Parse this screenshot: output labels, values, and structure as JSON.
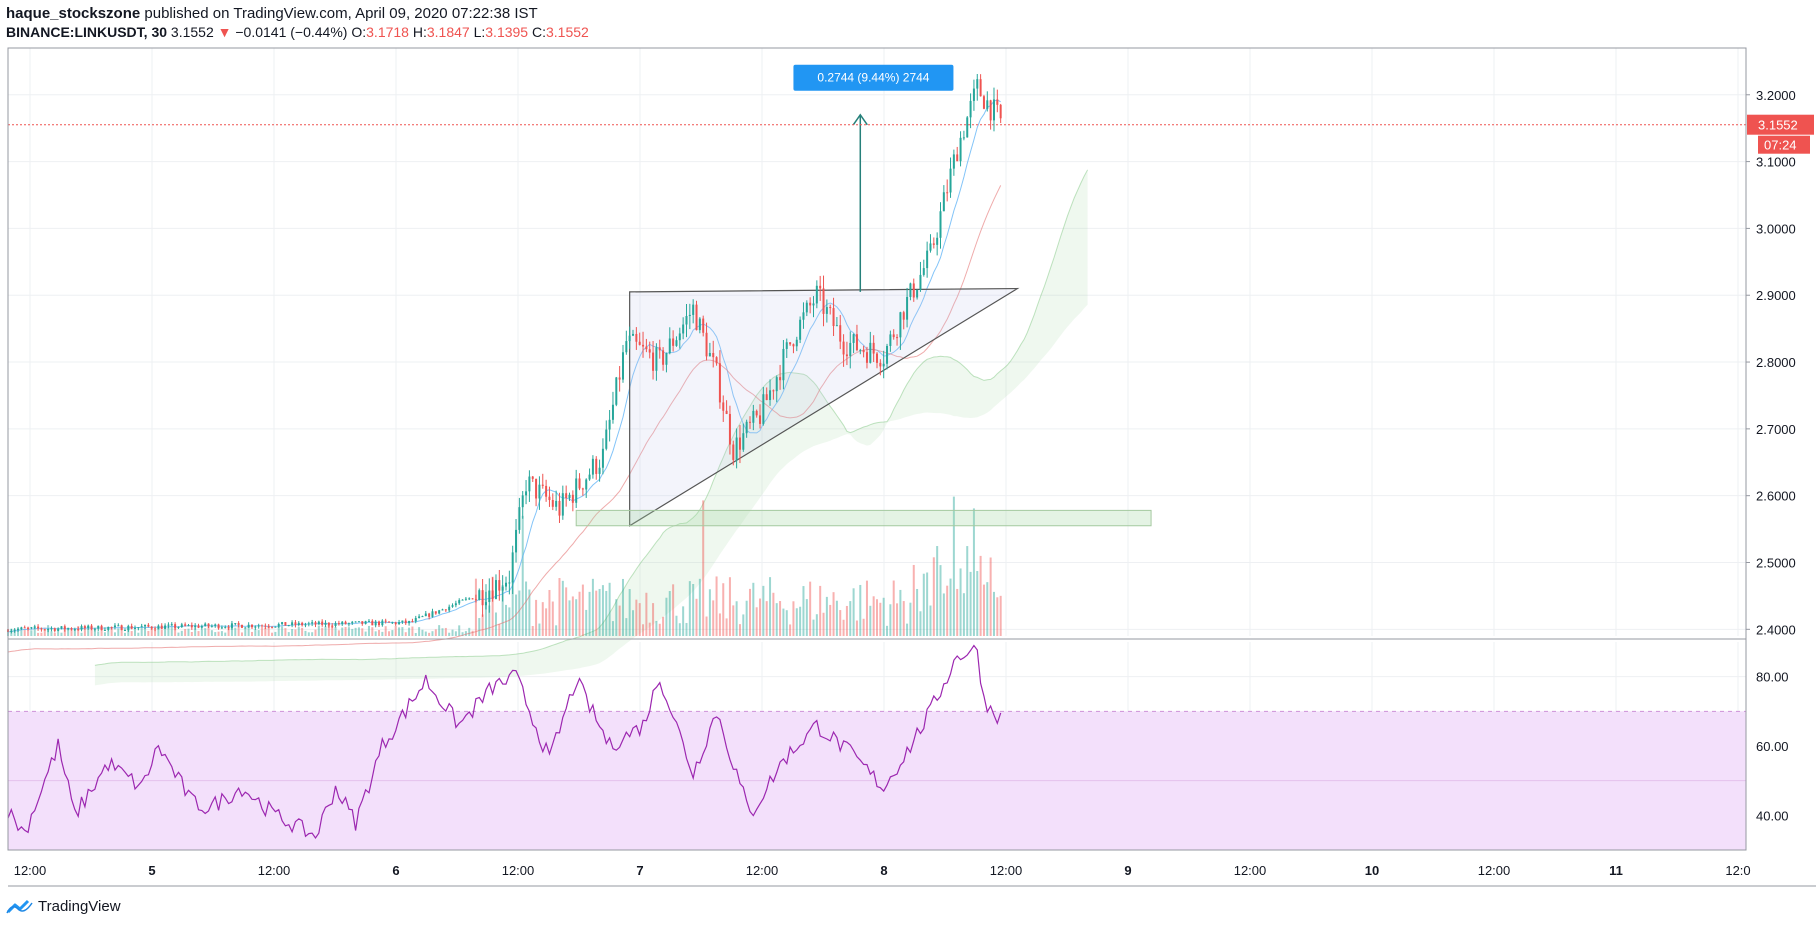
{
  "header": {
    "author": "haque_stockszone",
    "published": "published on TradingView.com, April 09, 2020 07:22:38 IST",
    "symbol": "BINANCE:LINKUSDT, 30",
    "last": "3.1552",
    "change": "−0.0141 (−0.44%)",
    "o_label": "O:",
    "o": "3.1718",
    "h_label": "H:",
    "h": "3.1847",
    "l_label": "L:",
    "l": "3.1395",
    "c_label": "C:",
    "c": "3.1552"
  },
  "footer": {
    "brand": "TradingView"
  },
  "colors": {
    "up": "#26a69a",
    "down": "#ef5350",
    "rsi": "#9c27b0",
    "rsi_band": "#f3e0fb",
    "label_blue": "#2196f3",
    "grid": "#eef0f3"
  },
  "chart_data": [
    {
      "type": "candlestick",
      "title": "",
      "ylim": [
        2.39,
        3.27
      ],
      "y_ticks": [
        "3.2000",
        "3.1000",
        "3.0000",
        "2.9000",
        "2.8000",
        "2.7000",
        "2.6000",
        "2.5000",
        "2.4000"
      ],
      "y_tick_values": [
        3.2,
        3.1,
        3.0,
        2.9,
        2.8,
        2.7,
        2.6,
        2.5,
        2.4
      ],
      "x_ticks": [
        "12:00",
        "5",
        "12:00",
        "6",
        "12:00",
        "7",
        "12:00",
        "8",
        "12:00",
        "9",
        "12:00",
        "10",
        "12:00",
        "11",
        "12:0"
      ],
      "last_price_label": "3.1552",
      "countdown_label": "07:24",
      "measure_label": "0.2744 (9.44%) 2744",
      "key_points": [
        {
          "bar": 0,
          "close": 2.4
        },
        {
          "bar": 120,
          "close": 2.41
        },
        {
          "bar": 140,
          "close": 2.45
        },
        {
          "bar": 150,
          "close": 2.48
        },
        {
          "bar": 155,
          "close": 2.62
        },
        {
          "bar": 165,
          "close": 2.58
        },
        {
          "bar": 178,
          "close": 2.66
        },
        {
          "bar": 185,
          "close": 2.83
        },
        {
          "bar": 195,
          "close": 2.8
        },
        {
          "bar": 205,
          "close": 2.88
        },
        {
          "bar": 212,
          "close": 2.78
        },
        {
          "bar": 217,
          "close": 2.67
        },
        {
          "bar": 225,
          "close": 2.72
        },
        {
          "bar": 235,
          "close": 2.84
        },
        {
          "bar": 242,
          "close": 2.9
        },
        {
          "bar": 250,
          "close": 2.83
        },
        {
          "bar": 262,
          "close": 2.81
        },
        {
          "bar": 268,
          "close": 2.88
        },
        {
          "bar": 276,
          "close": 2.96
        },
        {
          "bar": 284,
          "close": 3.12
        },
        {
          "bar": 290,
          "close": 3.21
        },
        {
          "bar": 297,
          "close": 3.16
        }
      ]
    },
    {
      "type": "line",
      "title": "",
      "ylim": [
        30,
        90
      ],
      "y_ticks": [
        "80.00",
        "60.00",
        "40.00"
      ],
      "y_tick_values": [
        80,
        60,
        40
      ],
      "band": [
        30,
        70
      ],
      "key_points": [
        {
          "bar": 0,
          "v": 41
        },
        {
          "bar": 5,
          "v": 35
        },
        {
          "bar": 15,
          "v": 60
        },
        {
          "bar": 20,
          "v": 40
        },
        {
          "bar": 30,
          "v": 55
        },
        {
          "bar": 40,
          "v": 48
        },
        {
          "bar": 45,
          "v": 60
        },
        {
          "bar": 55,
          "v": 44
        },
        {
          "bar": 60,
          "v": 42
        },
        {
          "bar": 70,
          "v": 48
        },
        {
          "bar": 80,
          "v": 40
        },
        {
          "bar": 92,
          "v": 34
        },
        {
          "bar": 98,
          "v": 48
        },
        {
          "bar": 104,
          "v": 38
        },
        {
          "bar": 112,
          "v": 60
        },
        {
          "bar": 125,
          "v": 79
        },
        {
          "bar": 135,
          "v": 66
        },
        {
          "bar": 145,
          "v": 77
        },
        {
          "bar": 152,
          "v": 80
        },
        {
          "bar": 162,
          "v": 56
        },
        {
          "bar": 170,
          "v": 79
        },
        {
          "bar": 180,
          "v": 60
        },
        {
          "bar": 190,
          "v": 66
        },
        {
          "bar": 195,
          "v": 80
        },
        {
          "bar": 205,
          "v": 52
        },
        {
          "bar": 212,
          "v": 70
        },
        {
          "bar": 222,
          "v": 40
        },
        {
          "bar": 232,
          "v": 56
        },
        {
          "bar": 242,
          "v": 66
        },
        {
          "bar": 252,
          "v": 58
        },
        {
          "bar": 262,
          "v": 48
        },
        {
          "bar": 270,
          "v": 60
        },
        {
          "bar": 276,
          "v": 70
        },
        {
          "bar": 284,
          "v": 86
        },
        {
          "bar": 290,
          "v": 88
        },
        {
          "bar": 292,
          "v": 73
        },
        {
          "bar": 297,
          "v": 68
        }
      ]
    }
  ]
}
